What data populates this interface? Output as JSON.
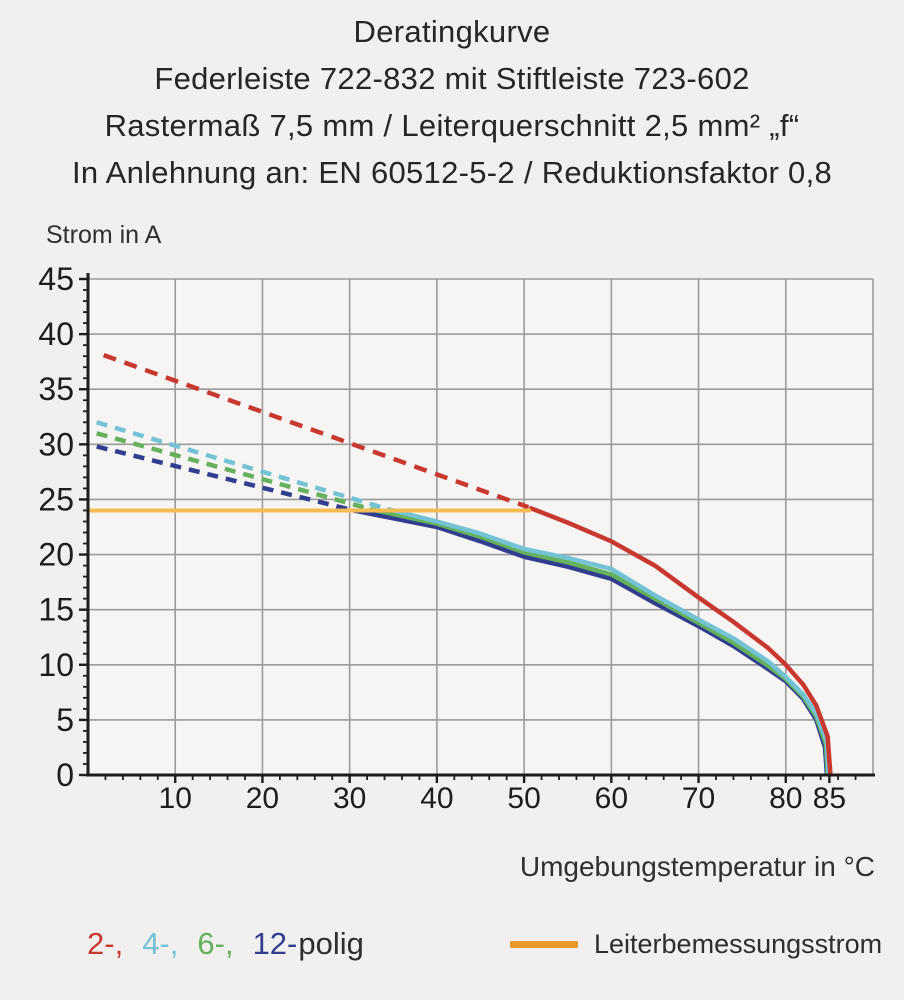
{
  "page": {
    "background": "#f1f0ee"
  },
  "header": {
    "lines": [
      "Deratingkurve",
      "Federleiste 722-832 mit Stiftleiste 723-602",
      "Rastermaß 7,5 mm / Leiterquerschnitt 2,5 mm² „f“",
      "In Anlehnung an: EN 60512-5-2 / Reduktionsfaktor 0,8"
    ]
  },
  "chart_data": {
    "type": "line",
    "title": "Deratingkurve",
    "xlabel": "Umgebungstemperatur in °C",
    "ylabel": "Strom in A",
    "xlim": [
      0,
      90
    ],
    "ylim": [
      0,
      45
    ],
    "x_tick_labels": [
      10,
      20,
      30,
      40,
      50,
      60,
      70,
      80,
      85
    ],
    "x_grid_step": 10,
    "x_minor_tick_step": 2,
    "y_tick_step": 5,
    "y_minor_tick_step": 1,
    "grid": true,
    "grid_color": "#9b9b9b",
    "axis_color": "#1d1d1d",
    "plot_background": "#f6f5f3",
    "legend_position": "bottom",
    "series": [
      {
        "id": "12-polig",
        "label": "12-polig",
        "color": "#313d8f",
        "style": "dashed",
        "points": [
          [
            1,
            29.8
          ],
          [
            30.5,
            24.0
          ]
        ]
      },
      {
        "id": "12-polig",
        "label": "12-polig",
        "color": "#313d8f",
        "style": "solid",
        "points": [
          [
            30.5,
            24.0
          ],
          [
            40,
            22.5
          ],
          [
            45,
            21.2
          ],
          [
            50,
            19.8
          ],
          [
            55,
            18.9
          ],
          [
            60,
            17.8
          ],
          [
            65,
            15.6
          ],
          [
            70,
            13.5
          ],
          [
            74,
            11.7
          ],
          [
            78,
            9.6
          ],
          [
            80,
            8.5
          ],
          [
            82,
            6.9
          ],
          [
            83.5,
            5.0
          ],
          [
            84.5,
            2.5
          ],
          [
            84.7,
            0.2
          ]
        ]
      },
      {
        "id": "6-polig",
        "label": "6-polig",
        "color": "#64b05c",
        "style": "dashed",
        "points": [
          [
            1,
            31.0
          ],
          [
            32.5,
            24.1
          ]
        ]
      },
      {
        "id": "6-polig",
        "label": "6-polig",
        "color": "#64b05c",
        "style": "solid",
        "points": [
          [
            32.5,
            24.1
          ],
          [
            40,
            22.8
          ],
          [
            45,
            21.6
          ],
          [
            50,
            20.2
          ],
          [
            55,
            19.3
          ],
          [
            60,
            18.2
          ],
          [
            65,
            16.0
          ],
          [
            70,
            13.8
          ],
          [
            74,
            12.0
          ],
          [
            78,
            9.9
          ],
          [
            80,
            8.7
          ],
          [
            82,
            7.1
          ],
          [
            83.5,
            5.3
          ],
          [
            84.6,
            2.8
          ],
          [
            84.8,
            0.2
          ]
        ]
      },
      {
        "id": "4-polig",
        "label": "4-polig",
        "color": "#74c3d5",
        "style": "dashed",
        "points": [
          [
            1,
            32.0
          ],
          [
            34.5,
            24.1
          ]
        ]
      },
      {
        "id": "4-polig",
        "label": "4-polig",
        "color": "#74c3d5",
        "style": "solid",
        "points": [
          [
            34.5,
            24.1
          ],
          [
            40,
            23.0
          ],
          [
            45,
            21.9
          ],
          [
            50,
            20.5
          ],
          [
            55,
            19.7
          ],
          [
            60,
            18.7
          ],
          [
            65,
            16.3
          ],
          [
            70,
            14.1
          ],
          [
            74,
            12.4
          ],
          [
            78,
            10.3
          ],
          [
            80,
            8.9
          ],
          [
            82,
            7.3
          ],
          [
            83.5,
            5.6
          ],
          [
            84.7,
            3.0
          ],
          [
            84.9,
            0.2
          ]
        ]
      },
      {
        "id": "2-polig",
        "label": "2-polig",
        "color": "#c9382e",
        "style": "dashed",
        "points": [
          [
            1.8,
            38.1
          ],
          [
            50.5,
            24.3
          ]
        ]
      },
      {
        "id": "2-polig",
        "label": "2-polig",
        "color": "#c9382e",
        "style": "solid",
        "points": [
          [
            50.8,
            24.2
          ],
          [
            55,
            22.9
          ],
          [
            60,
            21.2
          ],
          [
            65,
            19.0
          ],
          [
            70,
            16.1
          ],
          [
            74,
            13.9
          ],
          [
            78,
            11.5
          ],
          [
            80,
            10.0
          ],
          [
            82,
            8.2
          ],
          [
            83.5,
            6.3
          ],
          [
            84.8,
            3.5
          ],
          [
            85.1,
            0.2
          ]
        ]
      },
      {
        "id": "leiterbemessungsstrom",
        "label": "Leiterbemessungsstrom",
        "color": "#f4bc52",
        "style": "solid",
        "width": 4,
        "points": [
          [
            0,
            24
          ],
          [
            50.6,
            24
          ]
        ]
      }
    ]
  },
  "legend": {
    "pole_items": [
      {
        "id": "2-polig",
        "label": "2-,",
        "color": "#c9382e"
      },
      {
        "id": "4-polig",
        "label": "4-,",
        "color": "#74c3d5"
      },
      {
        "id": "6-polig",
        "label": "6-,",
        "color": "#64b05c"
      },
      {
        "id": "12-polig",
        "label": "12-",
        "color": "#313d8f"
      }
    ],
    "pole_suffix": "polig",
    "pole_suffix_color": "#2e2e2e",
    "rated_current": {
      "label": "Leiterbemessungsstrom",
      "swatch_color": "#e8992e"
    }
  }
}
